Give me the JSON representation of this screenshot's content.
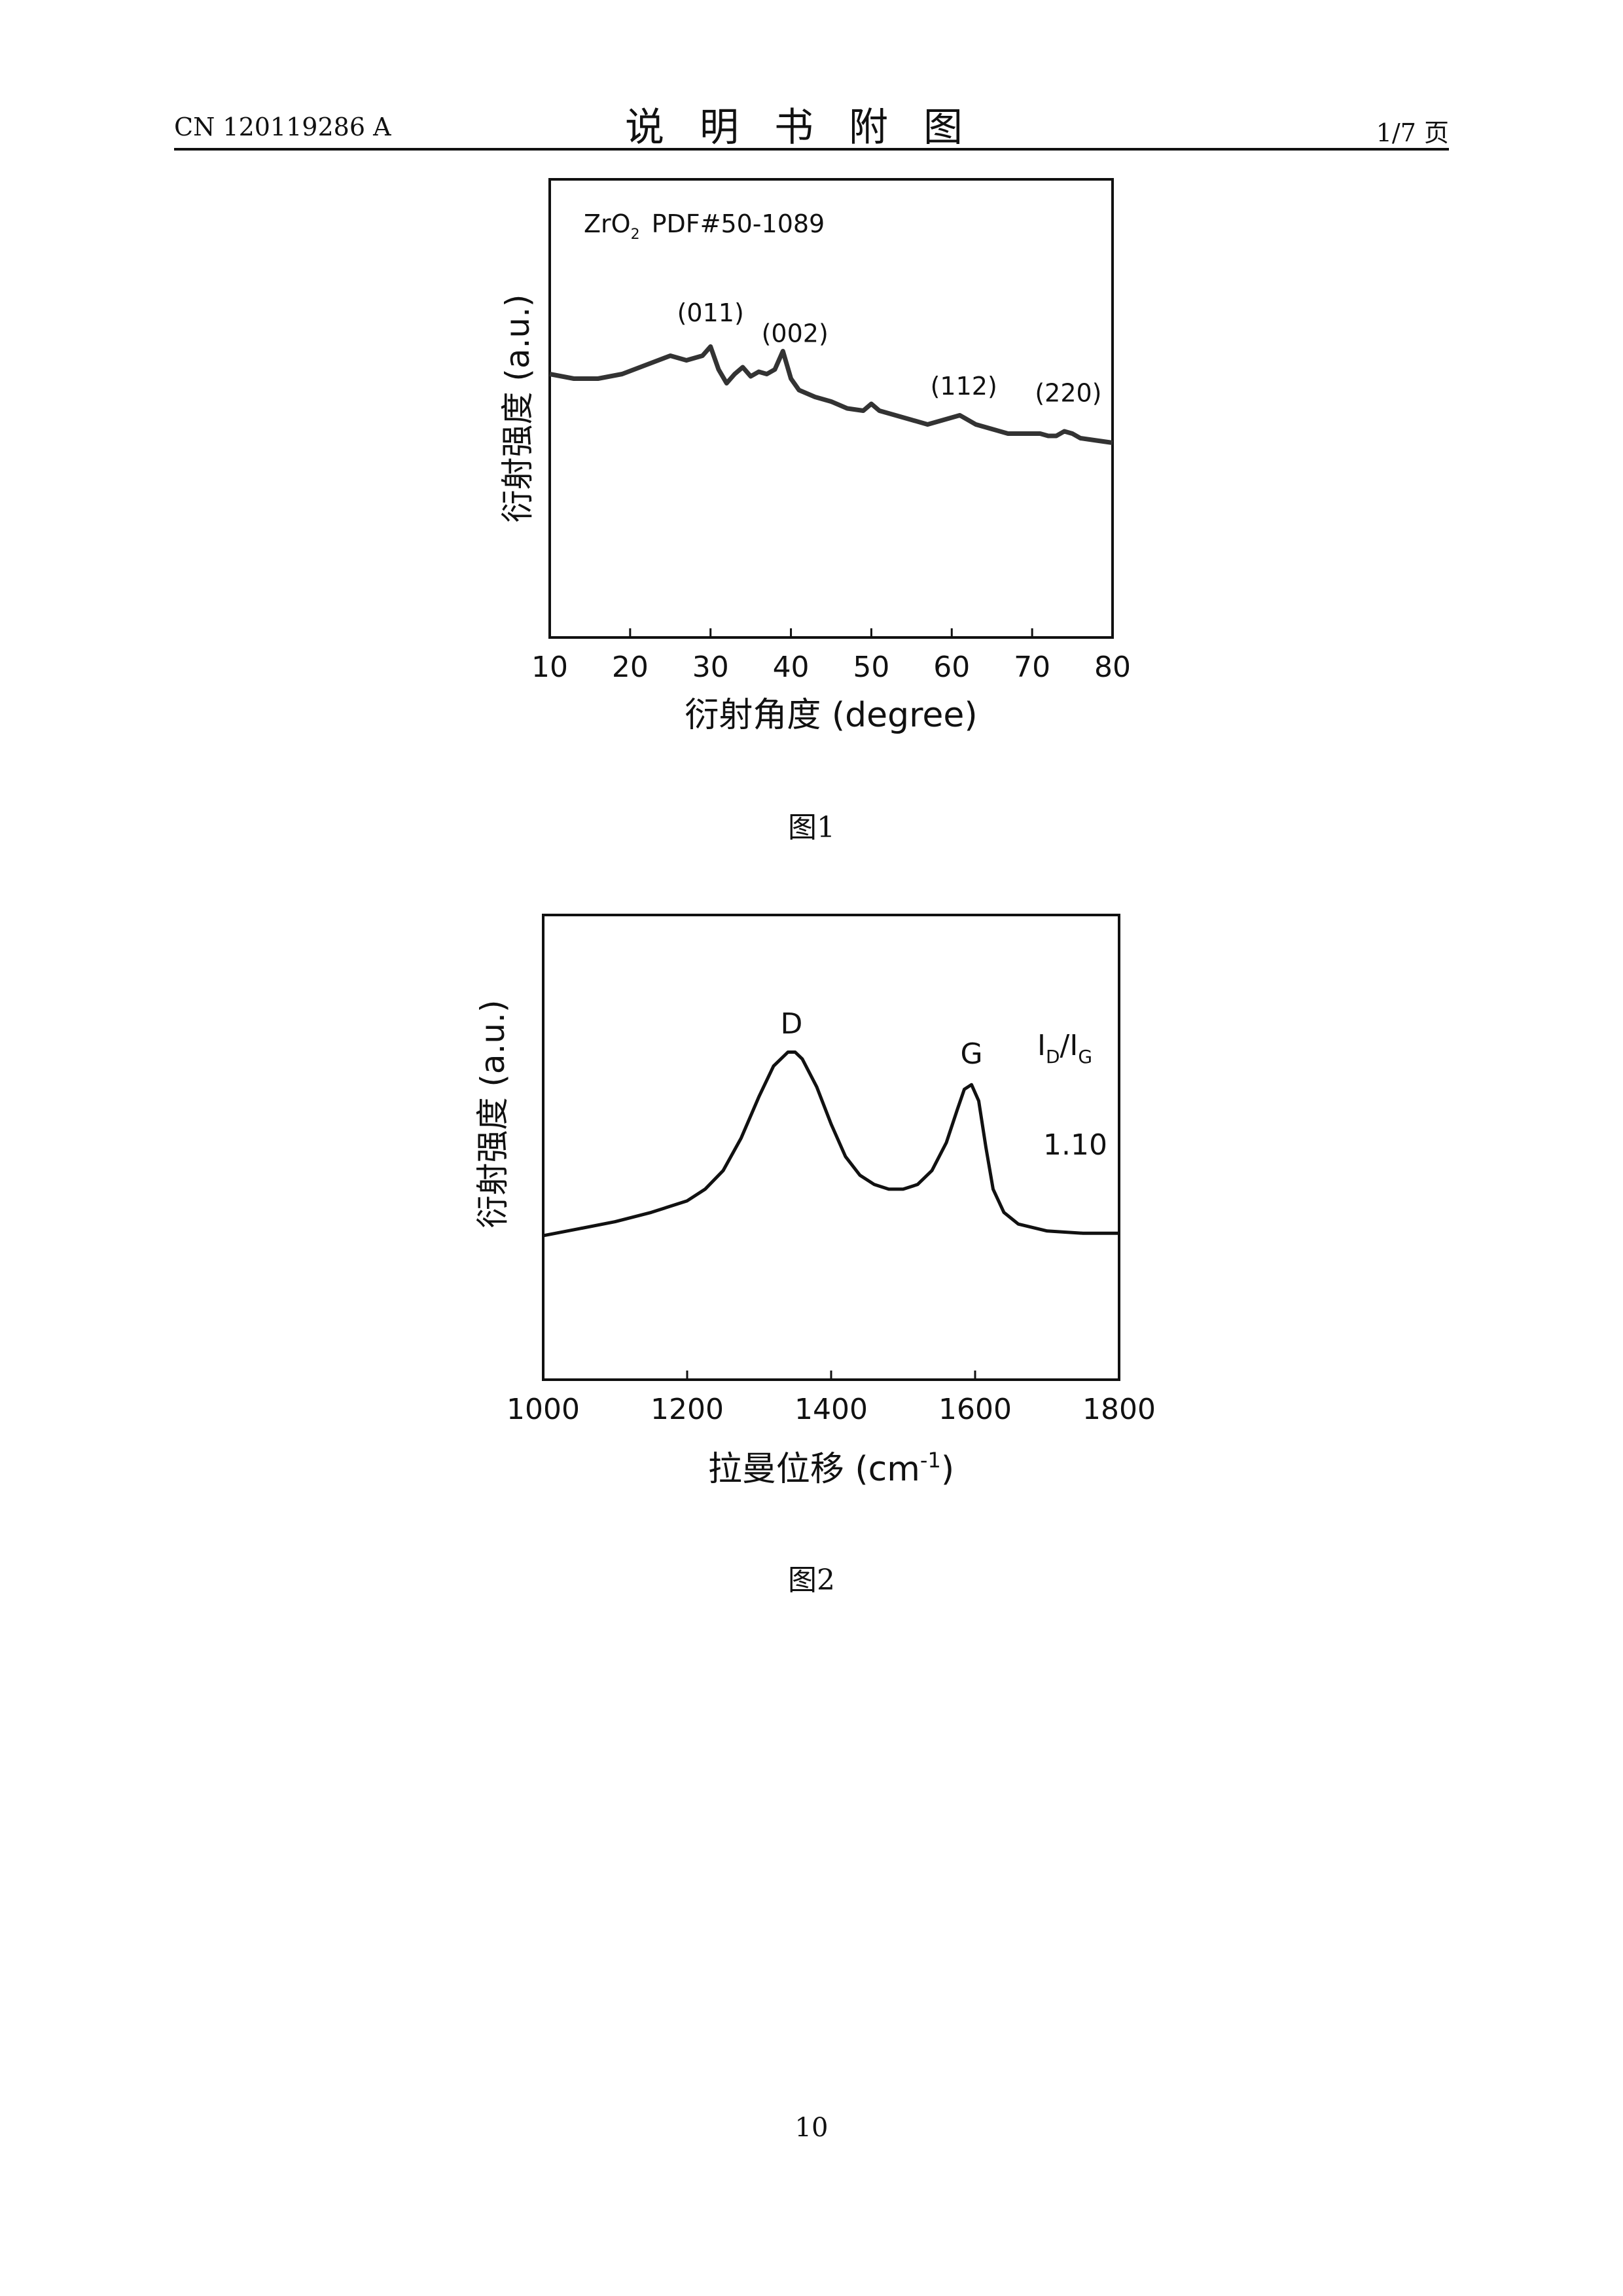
{
  "header": {
    "doc_number": "CN 120119286 A",
    "title": "说明书附图",
    "page_of": "1/7 页"
  },
  "figure1": {
    "caption": "图1",
    "annotation_main": "ZrO",
    "annotation_sub": "2",
    "annotation_pdf": "PDF#50-1089"
  },
  "figure2": {
    "caption": "图2",
    "ratio_main": "I",
    "ratio_sub1": "D",
    "ratio_slash": "/I",
    "ratio_sub2": "G",
    "ratio_value": "1.10"
  },
  "footer": {
    "page_number": "10"
  },
  "chart_data": [
    {
      "type": "line",
      "xlabel": "衍射角度 (degree)",
      "ylabel": "衍射强度 (a.u.)",
      "xlim": [
        10,
        80
      ],
      "ylim": [
        0,
        100
      ],
      "xticks": [
        10,
        20,
        30,
        40,
        50,
        60,
        70,
        80
      ],
      "grid": false,
      "x": [
        10,
        13,
        16,
        19,
        22,
        25,
        27,
        29,
        30,
        31,
        32,
        33,
        34,
        35,
        36,
        37,
        38,
        39,
        40,
        41,
        43,
        45,
        47,
        49,
        50,
        51,
        53,
        55,
        57,
        59,
        61,
        62,
        63,
        65,
        67,
        69,
        71,
        72,
        73,
        74,
        75,
        76,
        78,
        80
      ],
      "y": [
        57.5,
        56.5,
        56.5,
        57.5,
        59.5,
        61.5,
        60.5,
        61.5,
        63.5,
        58.5,
        55.5,
        57.5,
        59,
        57,
        58,
        57.5,
        58.5,
        62.5,
        56.5,
        54,
        52.5,
        51.5,
        50,
        49.5,
        51,
        49.5,
        48.5,
        47.5,
        46.5,
        47.5,
        48.5,
        47.5,
        46.5,
        45.5,
        44.5,
        44.5,
        44.5,
        44,
        44,
        45,
        44.5,
        43.5,
        43,
        42.5
      ],
      "annotations": [
        {
          "text": "(011)",
          "x": 30,
          "y": 69
        },
        {
          "text": "(002)",
          "x": 40.5,
          "y": 64.5
        },
        {
          "text": "(112)",
          "x": 61.5,
          "y": 53
        },
        {
          "text": "(220)",
          "x": 74.5,
          "y": 51.5
        }
      ]
    },
    {
      "type": "line",
      "xlabel": "拉曼位移 (cm⁻¹)",
      "xlabel_main": "拉曼位移 (cm",
      "xlabel_sup": "-1",
      "xlabel_end": ")",
      "ylabel": "衍射强度 (a.u.)",
      "xlim": [
        1000,
        1800
      ],
      "ylim": [
        0,
        100
      ],
      "xticks": [
        1000,
        1200,
        1400,
        1600,
        1800
      ],
      "grid": false,
      "x": [
        1000,
        1050,
        1100,
        1150,
        1200,
        1225,
        1250,
        1275,
        1300,
        1320,
        1340,
        1350,
        1360,
        1380,
        1400,
        1420,
        1440,
        1460,
        1480,
        1500,
        1520,
        1540,
        1560,
        1575,
        1585,
        1595,
        1605,
        1615,
        1625,
        1640,
        1660,
        1700,
        1750,
        1800
      ],
      "y": [
        31,
        32.5,
        34,
        36,
        38.5,
        41,
        45,
        52,
        61,
        67.5,
        70.5,
        70.5,
        69,
        63,
        55,
        48,
        44,
        42,
        41,
        41,
        42,
        45,
        51,
        58,
        62.5,
        63.5,
        60,
        50,
        41,
        36,
        33.5,
        32,
        31.5,
        31.5
      ],
      "annotations": [
        {
          "text": "D",
          "x": 1345,
          "y": 74.5
        },
        {
          "text": "G",
          "x": 1595,
          "y": 68
        }
      ]
    }
  ]
}
